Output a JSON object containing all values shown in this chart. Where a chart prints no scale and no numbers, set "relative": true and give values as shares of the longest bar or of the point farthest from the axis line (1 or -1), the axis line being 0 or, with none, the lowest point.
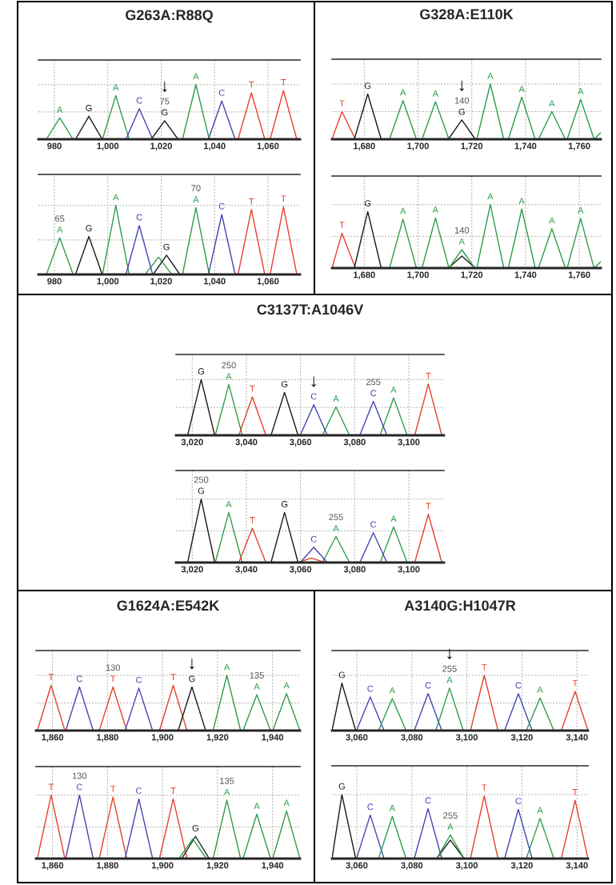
{
  "chart_data": [
    {
      "type": "line",
      "title": "G263A:R88Q",
      "relative": true,
      "grid": true,
      "line_style": "solid",
      "xlim": [
        974,
        1072
      ],
      "xticks": [
        980,
        {
          "value": 1000,
          "label": "1,000"
        },
        {
          "value": 1020,
          "label": "1,020"
        },
        {
          "value": 1040,
          "label": "1,040"
        },
        {
          "value": 1060,
          "label": "1,060"
        }
      ],
      "series": [
        {
          "color": "#2e9e4a",
          "x": [
            977,
            982,
            987,
            998,
            1003,
            1008,
            1028,
            1033,
            1038
          ],
          "values": [
            0,
            0.39,
            0,
            0,
            0.8,
            0,
            0,
            1,
            0
          ]
        },
        {
          "color": "#4646b4",
          "x": [
            1006.8,
            1011.8,
            1016.8,
            1037.7,
            1042.7,
            1047.7
          ],
          "values": [
            0,
            0.56,
            0,
            0,
            0.7,
            0
          ]
        },
        {
          "color": "#1a1a1a",
          "x": [
            987.9,
            992.9,
            997.9,
            1016.3,
            1021.3,
            1026.3
          ],
          "values": [
            0,
            0.42,
            0,
            0,
            0.34,
            0
          ]
        },
        {
          "color": "#e8412c",
          "x": [
            1048.8,
            1053.8,
            1058.8,
            1060.8,
            1065.8,
            1070.8
          ],
          "values": [
            0,
            0.85,
            0,
            0,
            0.89,
            0
          ]
        }
      ],
      "annotations": [
        {
          "text": "A",
          "x": 982,
          "y": 0.39
        },
        {
          "text": "G",
          "x": 992.9,
          "y": 0.42
        },
        {
          "text": "A",
          "x": 1003,
          "y": 0.8
        },
        {
          "text": "C",
          "x": 1011.8,
          "y": 0.56
        },
        {
          "text": "G",
          "x": 1021.3,
          "y": 0.34
        },
        {
          "text": "A",
          "x": 1033,
          "y": 1
        },
        {
          "text": "C",
          "x": 1042.7,
          "y": 0.7
        },
        {
          "text": "T",
          "x": 1053.8,
          "y": 0.85
        },
        {
          "text": "T",
          "x": 1065.8,
          "y": 0.89
        },
        {
          "text": "75",
          "x": 1021.3,
          "y": 0.34
        },
        {
          "text": "↓",
          "x": 1021.3,
          "y": 0.34
        }
      ]
    },
    {
      "type": "line",
      "relative": true,
      "grid": true,
      "line_style": "solid",
      "xlim": [
        974,
        1072
      ],
      "xticks": [
        980,
        {
          "value": 1000,
          "label": "1,000"
        },
        {
          "value": 1020,
          "label": "1,020"
        },
        {
          "value": 1040,
          "label": "1,040"
        },
        {
          "value": 1060,
          "label": "1,060"
        }
      ],
      "series": [
        {
          "color": "#2e9e4a",
          "x": [
            977,
            982,
            987,
            998,
            1003,
            1008,
            1014,
            1019,
            1024,
            1028,
            1033,
            1038
          ],
          "values": [
            0,
            0.53,
            0,
            0,
            1,
            0,
            0,
            0.25,
            0,
            0,
            0.97,
            0
          ]
        },
        {
          "color": "#4646b4",
          "x": [
            1006.8,
            1011.8,
            1016.8,
            1037.7,
            1042.7,
            1047.7
          ],
          "values": [
            0,
            0.71,
            0,
            0,
            0.87,
            0
          ]
        },
        {
          "color": "#1a1a1a",
          "x": [
            987.9,
            992.9,
            997.9,
            1017,
            1022,
            1027
          ],
          "values": [
            0,
            0.55,
            0,
            0,
            0.28,
            0
          ]
        },
        {
          "color": "#e8412c",
          "x": [
            1048.8,
            1053.8,
            1058.8,
            1060.8,
            1065.8,
            1070.8
          ],
          "values": [
            0,
            0.94,
            0,
            0,
            0.98,
            0
          ]
        }
      ],
      "annotations": [
        {
          "text": "A",
          "x": 982,
          "y": 0.53
        },
        {
          "text": "G",
          "x": 992.9,
          "y": 0.55
        },
        {
          "text": "A",
          "x": 1003,
          "y": 1
        },
        {
          "text": "C",
          "x": 1011.8,
          "y": 0.71
        },
        {
          "text": "G",
          "x": 1022,
          "y": 0.28
        },
        {
          "text": "A",
          "x": 1033,
          "y": 0.97
        },
        {
          "text": "C",
          "x": 1042.7,
          "y": 0.87
        },
        {
          "text": "T",
          "x": 1053.8,
          "y": 0.94
        },
        {
          "text": "T",
          "x": 1065.8,
          "y": 0.98
        },
        {
          "text": "65",
          "x": 982,
          "y": 0.53
        },
        {
          "text": "70",
          "x": 1033,
          "y": 0.97
        }
      ]
    },
    {
      "type": "line",
      "title": "G328A:E110K",
      "relative": true,
      "grid": true,
      "line_style": "solid",
      "xlim": [
        1668,
        1768
      ],
      "xticks": [
        {
          "value": 1680,
          "label": "1,680"
        },
        {
          "value": 1700,
          "label": "1,700"
        },
        {
          "value": 1720,
          "label": "1,720"
        },
        {
          "value": 1740,
          "label": "1,740"
        },
        {
          "value": 1760,
          "label": "1,760"
        }
      ],
      "series": [
        {
          "color": "#e8412c",
          "x": [
            1668,
            1671.7,
            1676.7
          ],
          "values": [
            0,
            0.5,
            0
          ]
        },
        {
          "color": "#1a1a1a",
          "x": [
            1676.3,
            1681.3,
            1686.3,
            1711.3,
            1716.3,
            1721.3
          ],
          "values": [
            0,
            0.82,
            0,
            0,
            0.35,
            0
          ]
        },
        {
          "color": "#2e9e4a",
          "x": [
            1689.4,
            1694.4,
            1699.4,
            1701.5,
            1706.5,
            1711.5,
            1721.9,
            1726.9,
            1731.9,
            1733.6,
            1738.6,
            1743.6,
            1744.8,
            1749.8,
            1754.8,
            1755.5,
            1760.5,
            1765.5,
            1768
          ],
          "values": [
            0,
            0.7,
            0,
            0,
            0.68,
            0,
            0,
            1,
            0,
            0,
            0.76,
            0,
            0,
            0.5,
            0,
            0,
            0.72,
            0,
            0.12
          ]
        }
      ],
      "annotations": [
        {
          "text": "T",
          "x": 1671.7,
          "y": 0.5
        },
        {
          "text": "G",
          "x": 1681.3,
          "y": 0.82
        },
        {
          "text": "A",
          "x": 1694.4,
          "y": 0.7
        },
        {
          "text": "A",
          "x": 1706.5,
          "y": 0.68
        },
        {
          "text": "G",
          "x": 1716.3,
          "y": 0.35
        },
        {
          "text": "A",
          "x": 1726.9,
          "y": 1
        },
        {
          "text": "A",
          "x": 1738.6,
          "y": 0.76
        },
        {
          "text": "A",
          "x": 1749.8,
          "y": 0.5
        },
        {
          "text": "A",
          "x": 1760.5,
          "y": 0.72
        },
        {
          "text": "140",
          "x": 1716.3,
          "y": 0.35
        },
        {
          "text": "↓",
          "x": 1716.3,
          "y": 0.35
        }
      ]
    },
    {
      "type": "line",
      "relative": true,
      "grid": true,
      "line_style": "solid",
      "xlim": [
        1668,
        1768
      ],
      "xticks": [
        {
          "value": 1680,
          "label": "1,680"
        },
        {
          "value": 1700,
          "label": "1,700"
        },
        {
          "value": 1720,
          "label": "1,720"
        },
        {
          "value": 1740,
          "label": "1,740"
        },
        {
          "value": 1760,
          "label": "1,760"
        }
      ],
      "series": [
        {
          "color": "#e8412c",
          "x": [
            1668,
            1671.7,
            1676.7
          ],
          "values": [
            0,
            0.55,
            0
          ]
        },
        {
          "color": "#1a1a1a",
          "x": [
            1676.3,
            1681.3,
            1686.3,
            1711.3,
            1716.3,
            1721.3
          ],
          "values": [
            0,
            0.89,
            0,
            0,
            0.19,
            0
          ]
        },
        {
          "color": "#2e9e4a",
          "x": [
            1689.4,
            1694.4,
            1699.4,
            1701.5,
            1706.5,
            1711.5,
            1711.5,
            1716.3,
            1721.1,
            1721.9,
            1726.9,
            1731.9,
            1733.6,
            1738.6,
            1743.6,
            1744.8,
            1749.8,
            1754.8,
            1755.5,
            1760.5,
            1765.5,
            1768
          ],
          "values": [
            0,
            0.77,
            0,
            0,
            0.79,
            0,
            0,
            0.29,
            0,
            0,
            1,
            0,
            0,
            0.93,
            0,
            0,
            0.62,
            0,
            0,
            0.78,
            0,
            0.1
          ]
        }
      ],
      "annotations": [
        {
          "text": "T",
          "x": 1671.7,
          "y": 0.55
        },
        {
          "text": "G",
          "x": 1681.3,
          "y": 0.89
        },
        {
          "text": "A",
          "x": 1694.4,
          "y": 0.77
        },
        {
          "text": "A",
          "x": 1706.5,
          "y": 0.79
        },
        {
          "text": "A",
          "x": 1716.3,
          "y": 0.29
        },
        {
          "text": "A",
          "x": 1726.9,
          "y": 1
        },
        {
          "text": "A",
          "x": 1738.6,
          "y": 0.93
        },
        {
          "text": "A",
          "x": 1749.8,
          "y": 0.62
        },
        {
          "text": "A",
          "x": 1760.5,
          "y": 0.78
        },
        {
          "text": "140",
          "x": 1716.3,
          "y": 0.29
        }
      ]
    },
    {
      "type": "line",
      "title": "C3137T:A1046V",
      "relative": true,
      "grid": true,
      "line_style": "solid",
      "xlim": [
        3014,
        3113
      ],
      "xticks": [
        {
          "value": 3020,
          "label": "3,020"
        },
        {
          "value": 3040,
          "label": "3,040"
        },
        {
          "value": 3060,
          "label": "3,060"
        },
        {
          "value": 3080,
          "label": "3,080"
        },
        {
          "value": 3100,
          "label": "3,100"
        }
      ],
      "series": [
        {
          "color": "#1a1a1a",
          "x": [
            3018.3,
            3023.3,
            3028.3,
            3049.1,
            3054.1,
            3059.1
          ],
          "values": [
            0,
            1,
            0,
            0,
            0.77,
            0
          ]
        },
        {
          "color": "#2e9e4a",
          "x": [
            3028.5,
            3033.5,
            3038.5,
            3068.1,
            3073.1,
            3078.1,
            3089.4,
            3094.4,
            3099.4
          ],
          "values": [
            0,
            0.91,
            0,
            0,
            0.51,
            0,
            0,
            0.67,
            0
          ]
        },
        {
          "color": "#e8412c",
          "x": [
            3037.2,
            3042.2,
            3047.2,
            3102.2,
            3107.2,
            3112.2
          ],
          "values": [
            0,
            0.69,
            0,
            0,
            0.92,
            0
          ]
        },
        {
          "color": "#4646b4",
          "x": [
            3059.9,
            3064.9,
            3069.9,
            3081.9,
            3086.9,
            3091.9
          ],
          "values": [
            0,
            0.55,
            0,
            0,
            0.61,
            0
          ]
        }
      ],
      "annotations": [
        {
          "text": "G",
          "x": 3023.3,
          "y": 1
        },
        {
          "text": "A",
          "x": 3033.5,
          "y": 0.91
        },
        {
          "text": "T",
          "x": 3042.2,
          "y": 0.69
        },
        {
          "text": "G",
          "x": 3054.1,
          "y": 0.77
        },
        {
          "text": "C",
          "x": 3064.9,
          "y": 0.55
        },
        {
          "text": "A",
          "x": 3073.1,
          "y": 0.51
        },
        {
          "text": "C",
          "x": 3086.9,
          "y": 0.61
        },
        {
          "text": "A",
          "x": 3094.4,
          "y": 0.67
        },
        {
          "text": "T",
          "x": 3107.2,
          "y": 0.92
        },
        {
          "text": "250",
          "x": 3033.5,
          "y": 0.91
        },
        {
          "text": "255",
          "x": 3086.9,
          "y": 0.61
        },
        {
          "text": "↓",
          "x": 3064.9,
          "y": 0.55
        }
      ]
    },
    {
      "type": "line",
      "relative": true,
      "grid": true,
      "line_style": "solid",
      "xlim": [
        3014,
        3113
      ],
      "xticks": [
        {
          "value": 3020,
          "label": "3,020"
        },
        {
          "value": 3040,
          "label": "3,040"
        },
        {
          "value": 3060,
          "label": "3,060"
        },
        {
          "value": 3080,
          "label": "3,080"
        },
        {
          "value": 3100,
          "label": "3,100"
        }
      ],
      "series": [
        {
          "color": "#1a1a1a",
          "x": [
            3018.3,
            3023.3,
            3028.3,
            3049.1,
            3054.1,
            3059.1
          ],
          "values": [
            0,
            1,
            0,
            0,
            0.79,
            0
          ]
        },
        {
          "color": "#2e9e4a",
          "x": [
            3028.5,
            3033.5,
            3038.5,
            3068.1,
            3073.1,
            3078.1,
            3089.4,
            3094.4,
            3099.4
          ],
          "values": [
            0,
            0.79,
            0,
            0,
            0.41,
            0,
            0,
            0.56,
            0
          ]
        },
        {
          "color": "#e8412c",
          "x": [
            3037.2,
            3042.2,
            3047.2,
            3059,
            3064,
            3069,
            3102.2,
            3107.2,
            3112.2
          ],
          "values": [
            0,
            0.54,
            0,
            0,
            0.07,
            0,
            0,
            0.76,
            0
          ]
        },
        {
          "color": "#4646b4",
          "x": [
            3059.9,
            3064.9,
            3069.9,
            3081.9,
            3086.9,
            3091.9
          ],
          "values": [
            0,
            0.24,
            0,
            0,
            0.47,
            0
          ]
        }
      ],
      "annotations": [
        {
          "text": "G",
          "x": 3023.3,
          "y": 1
        },
        {
          "text": "A",
          "x": 3033.5,
          "y": 0.79
        },
        {
          "text": "T",
          "x": 3042.2,
          "y": 0.54
        },
        {
          "text": "G",
          "x": 3054.1,
          "y": 0.79
        },
        {
          "text": "C",
          "x": 3064.9,
          "y": 0.24
        },
        {
          "text": "A",
          "x": 3073.1,
          "y": 0.41
        },
        {
          "text": "C",
          "x": 3086.9,
          "y": 0.47
        },
        {
          "text": "A",
          "x": 3094.4,
          "y": 0.56
        },
        {
          "text": "T",
          "x": 3107.2,
          "y": 0.76
        },
        {
          "text": "250",
          "x": 3023.3,
          "y": 1
        },
        {
          "text": "255",
          "x": 3073.1,
          "y": 0.41
        }
      ]
    },
    {
      "type": "line",
      "title": "G1624A:E542K",
      "relative": true,
      "grid": true,
      "line_style": "solid",
      "xlim": [
        1854,
        1950
      ],
      "xticks": [
        {
          "value": 1860,
          "label": "1,860"
        },
        {
          "value": 1880,
          "label": "1,880"
        },
        {
          "value": 1900,
          "label": "1,900"
        },
        {
          "value": 1920,
          "label": "1,920"
        },
        {
          "value": 1940,
          "label": "1,940"
        }
      ],
      "series": [
        {
          "color": "#e8412c",
          "x": [
            1854.5,
            1859.5,
            1864.5,
            1877,
            1882,
            1887,
            1898.9,
            1903.9,
            1908.9
          ],
          "values": [
            0,
            0.82,
            0,
            0,
            0.79,
            0,
            0,
            0.82,
            0
          ]
        },
        {
          "color": "#4646b4",
          "x": [
            1864.8,
            1869.8,
            1874.8,
            1886.4,
            1891.4,
            1896.4
          ],
          "values": [
            0,
            0.79,
            0,
            0,
            0.77,
            0
          ]
        },
        {
          "color": "#1a1a1a",
          "x": [
            1905.7,
            1910.7,
            1915.7
          ],
          "values": [
            0,
            0.79,
            0
          ]
        },
        {
          "color": "#2e9e4a",
          "x": [
            1918.4,
            1923.4,
            1928.4,
            1929.3,
            1934.3,
            1939.3,
            1940.1,
            1945.1,
            1950
          ],
          "values": [
            0,
            1,
            0,
            0,
            0.65,
            0,
            0,
            0.67,
            0
          ]
        }
      ],
      "annotations": [
        {
          "text": "T",
          "x": 1859.5,
          "y": 0.82
        },
        {
          "text": "C",
          "x": 1869.8,
          "y": 0.79
        },
        {
          "text": "T",
          "x": 1882,
          "y": 0.79
        },
        {
          "text": "C",
          "x": 1891.4,
          "y": 0.77
        },
        {
          "text": "T",
          "x": 1903.9,
          "y": 0.82
        },
        {
          "text": "G",
          "x": 1910.7,
          "y": 0.79
        },
        {
          "text": "A",
          "x": 1923.4,
          "y": 1
        },
        {
          "text": "A",
          "x": 1934.3,
          "y": 0.65
        },
        {
          "text": "A",
          "x": 1945.1,
          "y": 0.67
        },
        {
          "text": "130",
          "x": 1882,
          "y": 0.79
        },
        {
          "text": "135",
          "x": 1934.3,
          "y": 0.65
        },
        {
          "text": "↓",
          "x": 1910.7,
          "y": 0.79
        }
      ]
    },
    {
      "type": "line",
      "relative": true,
      "grid": true,
      "line_style": "solid",
      "xlim": [
        1854,
        1950
      ],
      "xticks": [
        {
          "value": 1860,
          "label": "1,860"
        },
        {
          "value": 1880,
          "label": "1,880"
        },
        {
          "value": 1900,
          "label": "1,900"
        },
        {
          "value": 1920,
          "label": "1,920"
        },
        {
          "value": 1940,
          "label": "1,940"
        }
      ],
      "series": [
        {
          "color": "#e8412c",
          "x": [
            1854.5,
            1859.5,
            1864.5,
            1877,
            1882,
            1887,
            1898.9,
            1903.9,
            1908.9
          ],
          "values": [
            0,
            1,
            0,
            0,
            0.97,
            0,
            0,
            0.94,
            0
          ]
        },
        {
          "color": "#4646b4",
          "x": [
            1864.8,
            1869.8,
            1874.8,
            1886.4,
            1891.4,
            1896.4
          ],
          "values": [
            0,
            1,
            0,
            0,
            0.94,
            0
          ]
        },
        {
          "color": "#1a1a1a",
          "x": [
            1907,
            1912,
            1917
          ],
          "values": [
            0,
            0.35,
            0
          ]
        },
        {
          "color": "#2e9e4a",
          "x": [
            1906,
            1911,
            1916,
            1918.4,
            1923.4,
            1928.4,
            1929.3,
            1934.3,
            1939.3,
            1940.1,
            1945.1,
            1950
          ],
          "values": [
            0,
            0.31,
            0,
            0,
            0.92,
            0,
            0,
            0.7,
            0,
            0,
            0.75,
            0
          ]
        }
      ],
      "annotations": [
        {
          "text": "T",
          "x": 1859.5,
          "y": 1
        },
        {
          "text": "C",
          "x": 1869.8,
          "y": 1
        },
        {
          "text": "T",
          "x": 1882,
          "y": 0.97
        },
        {
          "text": "C",
          "x": 1891.4,
          "y": 0.94
        },
        {
          "text": "T",
          "x": 1903.9,
          "y": 0.94
        },
        {
          "text": "G",
          "x": 1912,
          "y": 0.35
        },
        {
          "text": "A",
          "x": 1923.4,
          "y": 0.92
        },
        {
          "text": "A",
          "x": 1934.3,
          "y": 0.7
        },
        {
          "text": "A",
          "x": 1945.1,
          "y": 0.75
        },
        {
          "text": "130",
          "x": 1869.8,
          "y": 1
        },
        {
          "text": "135",
          "x": 1923.4,
          "y": 0.92
        }
      ]
    },
    {
      "type": "line",
      "title": "A3140G:H1047R",
      "relative": true,
      "grid": true,
      "line_style": "solid",
      "xlim": [
        3051,
        3144
      ],
      "xticks": [
        {
          "value": 3060,
          "label": "3,060"
        },
        {
          "value": 3080,
          "label": "3,080"
        },
        {
          "value": 3100,
          "label": "3,100"
        },
        {
          "value": 3120,
          "label": "3,120"
        },
        {
          "value": 3140,
          "label": "3,140"
        }
      ],
      "series": [
        {
          "color": "#1a1a1a",
          "x": [
            3051,
            3054.6,
            3059.6
          ],
          "values": [
            0,
            0.86,
            0
          ]
        },
        {
          "color": "#4646b4",
          "x": [
            3059.9,
            3064.9,
            3069.9,
            3080.9,
            3085.9,
            3090.9,
            3113.7,
            3118.7,
            3123.7
          ],
          "values": [
            0,
            0.61,
            0,
            0,
            0.67,
            0,
            0,
            0.67,
            0
          ]
        },
        {
          "color": "#2e9e4a",
          "x": [
            3067.9,
            3072.9,
            3077.9,
            3088.7,
            3093.7,
            3098.7,
            3121.6,
            3126.6,
            3131.6
          ],
          "values": [
            0,
            0.58,
            0,
            0,
            0.77,
            0,
            0,
            0.59,
            0
          ]
        },
        {
          "color": "#e8412c",
          "x": [
            3101.3,
            3106.3,
            3111.3,
            3134.3,
            3139.3,
            3144
          ],
          "values": [
            0,
            1,
            0,
            0,
            0.71,
            0
          ]
        }
      ],
      "annotations": [
        {
          "text": "G",
          "x": 3054.6,
          "y": 0.86
        },
        {
          "text": "C",
          "x": 3064.9,
          "y": 0.61
        },
        {
          "text": "A",
          "x": 3072.9,
          "y": 0.58
        },
        {
          "text": "C",
          "x": 3085.9,
          "y": 0.67
        },
        {
          "text": "A",
          "x": 3093.7,
          "y": 0.77
        },
        {
          "text": "T",
          "x": 3106.3,
          "y": 1
        },
        {
          "text": "C",
          "x": 3118.7,
          "y": 0.67
        },
        {
          "text": "A",
          "x": 3126.6,
          "y": 0.59
        },
        {
          "text": "T",
          "x": 3139.3,
          "y": 0.71
        },
        {
          "text": "255",
          "x": 3093.7,
          "y": 0.77
        },
        {
          "text": "↓",
          "x": 3093.7,
          "y": 0.77
        }
      ]
    },
    {
      "type": "line",
      "relative": true,
      "grid": true,
      "line_style": "solid",
      "xlim": [
        3051,
        3144
      ],
      "xticks": [
        {
          "value": 3060,
          "label": "3,060"
        },
        {
          "value": 3080,
          "label": "3,080"
        },
        {
          "value": 3100,
          "label": "3,100"
        },
        {
          "value": 3120,
          "label": "3,120"
        },
        {
          "value": 3140,
          "label": "3,140"
        }
      ],
      "series": [
        {
          "color": "#1a1a1a",
          "x": [
            3051,
            3054.6,
            3059.6,
            3089,
            3094,
            3099
          ],
          "values": [
            0,
            1,
            0,
            0,
            0.29,
            0
          ]
        },
        {
          "color": "#4646b4",
          "x": [
            3059.9,
            3064.9,
            3069.9,
            3080.9,
            3085.9,
            3090.9,
            3113.7,
            3118.7,
            3123.7
          ],
          "values": [
            0,
            0.68,
            0,
            0,
            0.78,
            0,
            0,
            0.77,
            0
          ]
        },
        {
          "color": "#2e9e4a",
          "x": [
            3067.9,
            3072.9,
            3077.9,
            3089,
            3094,
            3099,
            3121.6,
            3126.6,
            3131.6
          ],
          "values": [
            0,
            0.66,
            0,
            0,
            0.37,
            0,
            0,
            0.63,
            0
          ]
        },
        {
          "color": "#e8412c",
          "x": [
            3101.3,
            3106.3,
            3111.3,
            3134.3,
            3139.3,
            3144
          ],
          "values": [
            0,
            0.98,
            0,
            0,
            0.91,
            0
          ]
        }
      ],
      "annotations": [
        {
          "text": "G",
          "x": 3054.6,
          "y": 1
        },
        {
          "text": "C",
          "x": 3064.9,
          "y": 0.68
        },
        {
          "text": "A",
          "x": 3072.9,
          "y": 0.66
        },
        {
          "text": "C",
          "x": 3085.9,
          "y": 0.78
        },
        {
          "text": "A",
          "x": 3094,
          "y": 0.37
        },
        {
          "text": "T",
          "x": 3106.3,
          "y": 0.98
        },
        {
          "text": "C",
          "x": 3118.7,
          "y": 0.77
        },
        {
          "text": "A",
          "x": 3126.6,
          "y": 0.63
        },
        {
          "text": "T",
          "x": 3139.3,
          "y": 0.91
        },
        {
          "text": "255",
          "x": 3094,
          "y": 0.37
        }
      ]
    }
  ]
}
